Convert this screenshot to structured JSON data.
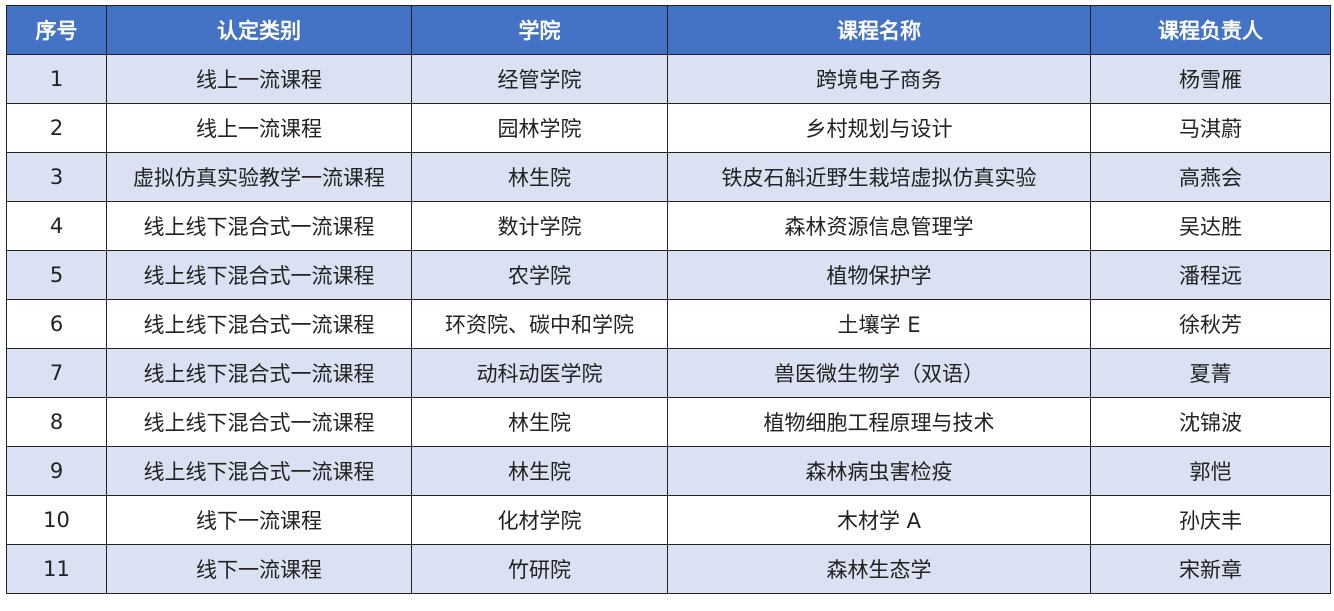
{
  "colors": {
    "header_bg": "#4472C4",
    "header_text": "#FFFFFF",
    "alt_row_bg": "#D9E1F2"
  },
  "headers": [
    "序号",
    "认定类别",
    "学院",
    "课程名称",
    "课程负责人"
  ],
  "rows": [
    [
      "1",
      "线上一流课程",
      "经管学院",
      "跨境电子商务",
      "杨雪雁"
    ],
    [
      "2",
      "线上一流课程",
      "园林学院",
      "乡村规划与设计",
      "马淇蔚"
    ],
    [
      "3",
      "虚拟仿真实验教学一流课程",
      "林生院",
      "铁皮石斛近野生栽培虚拟仿真实验",
      "高燕会"
    ],
    [
      "4",
      "线上线下混合式一流课程",
      "数计学院",
      "森林资源信息管理学",
      "吴达胜"
    ],
    [
      "5",
      "线上线下混合式一流课程",
      "农学院",
      "植物保护学",
      "潘程远"
    ],
    [
      "6",
      "线上线下混合式一流课程",
      "环资院、碳中和学院",
      "土壤学 E",
      "徐秋芳"
    ],
    [
      "7",
      "线上线下混合式一流课程",
      "动科动医学院",
      "兽医微生物学（双语）",
      "夏菁"
    ],
    [
      "8",
      "线上线下混合式一流课程",
      "林生院",
      "植物细胞工程原理与技术",
      "沈锦波"
    ],
    [
      "9",
      "线上线下混合式一流课程",
      "林生院",
      "森林病虫害检疫",
      "郭恺"
    ],
    [
      "10",
      "线下一流课程",
      "化材学院",
      "木材学 A",
      "孙庆丰"
    ],
    [
      "11",
      "线下一流课程",
      "竹研院",
      "森林生态学",
      "宋新章"
    ]
  ]
}
